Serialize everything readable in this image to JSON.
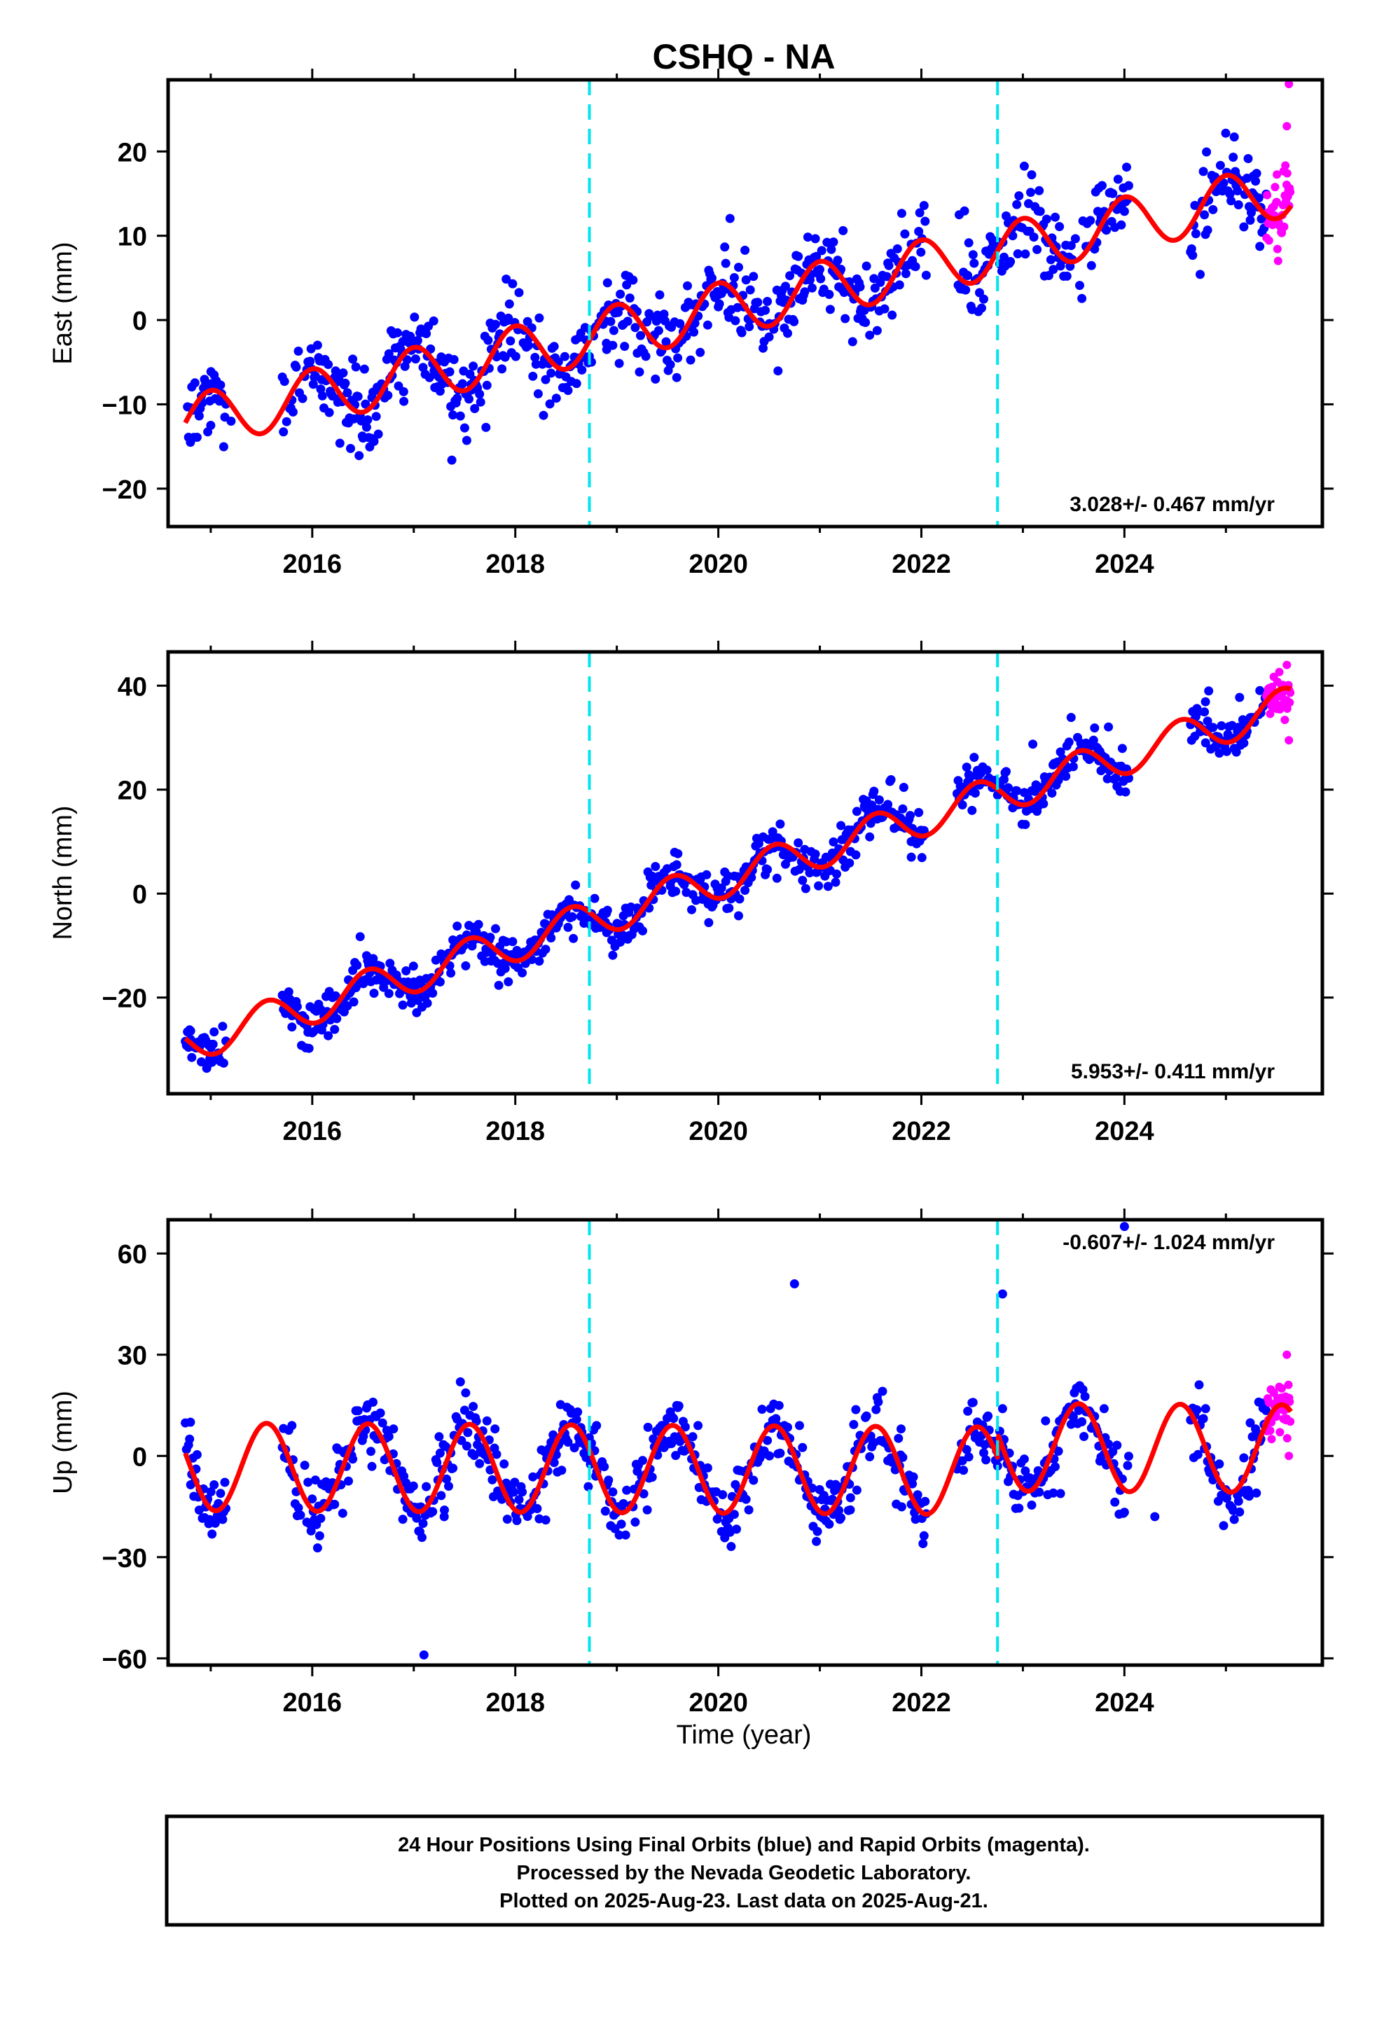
{
  "chart_title": "CSHQ - NA",
  "x_axis_label": "Time (year)",
  "footer": {
    "line1": "24 Hour Positions Using Final Orbits (blue) and Rapid Orbits (magenta).",
    "line2": "Processed by the Nevada Geodetic Laboratory.",
    "line3": "Plotted on 2025-Aug-23. Last data on 2025-Aug-21."
  },
  "colors": {
    "final_orbits": "#0000ff",
    "rapid_orbits": "#ff00ff",
    "model_fit": "#ff0000",
    "equipment_change": "#00e5ee",
    "frame": "#000000"
  },
  "chart_data": [
    {
      "type": "scatter",
      "panel": "east",
      "ylabel": "East (mm)",
      "xlim": [
        2014.58,
        2025.95
      ],
      "ylim": [
        -24.5,
        28.5
      ],
      "x_ticks": [
        2016,
        2018,
        2020,
        2022,
        2024
      ],
      "y_ticks": [
        -20,
        -10,
        0,
        10,
        20
      ],
      "rate_annotation": "3.028+/- 0.467 mm/yr",
      "rate_position": "bottom-right",
      "equipment_changes": [
        2018.73,
        2022.75
      ],
      "data_span": [
        2014.75,
        2025.4
      ],
      "rapid_span": [
        2025.4,
        2025.64
      ],
      "offsets": [],
      "series": [
        {
          "name": "Final Orbits (blue)",
          "color": "#0000ff",
          "sampled_values": [
            [
              2014.8,
              -14.5
            ],
            [
              2015.0,
              -12.5
            ],
            [
              2015.2,
              -12.0
            ],
            [
              2015.8,
              -9.5
            ],
            [
              2016.1,
              -9.0
            ],
            [
              2016.5,
              -14.0
            ],
            [
              2016.9,
              -8.5
            ],
            [
              2017.2,
              -6.0
            ],
            [
              2017.6,
              -10.5
            ],
            [
              2018.1,
              -3.0
            ],
            [
              2018.5,
              -8.0
            ],
            [
              2018.9,
              -3.5
            ],
            [
              2019.2,
              1.0
            ],
            [
              2019.6,
              -4.5
            ],
            [
              2020.0,
              3.0
            ],
            [
              2020.5,
              -2.0
            ],
            [
              2021.0,
              6.0
            ],
            [
              2021.4,
              1.0
            ],
            [
              2021.9,
              9.0
            ],
            [
              2022.4,
              4.5
            ],
            [
              2022.9,
              10.0
            ],
            [
              2023.3,
              6.0
            ],
            [
              2023.8,
              11.5
            ],
            [
              2024.8,
              14.0
            ],
            [
              2025.1,
              16.0
            ],
            [
              2025.35,
              12.0
            ]
          ]
        },
        {
          "name": "Rapid Orbits (magenta)",
          "color": "#ff00ff",
          "sampled_values": [
            [
              2025.45,
              12.0
            ],
            [
              2025.5,
              14.0
            ],
            [
              2025.55,
              10.5
            ],
            [
              2025.6,
              23.0
            ],
            [
              2025.62,
              28.0
            ]
          ]
        },
        {
          "name": "Model fit",
          "color": "#ff0000",
          "model": {
            "t0": 2020.0,
            "intercept": 1.2,
            "rate": 2.55,
            "seasonal_amplitude": 3.2,
            "seasonal_phase_year": 2015.0
          }
        }
      ]
    },
    {
      "type": "scatter",
      "panel": "north",
      "ylabel": "North (mm)",
      "xlim": [
        2014.58,
        2025.95
      ],
      "ylim": [
        -38.5,
        46.5
      ],
      "x_ticks": [
        2016,
        2018,
        2020,
        2022,
        2024
      ],
      "y_ticks": [
        -20,
        0,
        20,
        40
      ],
      "rate_annotation": "5.953+/- 0.411 mm/yr",
      "rate_position": "bottom-right",
      "equipment_changes": [
        2018.73,
        2022.75
      ],
      "data_span": [
        2014.75,
        2025.4
      ],
      "rapid_span": [
        2025.4,
        2025.64
      ],
      "offsets": [],
      "series": [
        {
          "name": "Final Orbits (blue)",
          "color": "#0000ff",
          "sampled_values": [
            [
              2014.8,
              -28.0
            ],
            [
              2015.0,
              -29.0
            ],
            [
              2015.8,
              -23.5
            ],
            [
              2016.2,
              -20.0
            ],
            [
              2016.6,
              -12.5
            ],
            [
              2017.0,
              -17.0
            ],
            [
              2017.6,
              -7.0
            ],
            [
              2017.9,
              -11.5
            ],
            [
              2018.5,
              -2.0
            ],
            [
              2018.9,
              -7.5
            ],
            [
              2019.6,
              3.0
            ],
            [
              2019.9,
              -2.0
            ],
            [
              2020.5,
              8.5
            ],
            [
              2020.9,
              4.0
            ],
            [
              2021.5,
              14.0
            ],
            [
              2021.9,
              10.0
            ],
            [
              2022.5,
              20.5
            ],
            [
              2022.9,
              16.5
            ],
            [
              2023.5,
              26.0
            ],
            [
              2023.9,
              22.0
            ],
            [
              2024.8,
              29.0
            ],
            [
              2025.2,
              32.0
            ]
          ]
        },
        {
          "name": "Rapid Orbits (magenta)",
          "color": "#ff00ff",
          "sampled_values": [
            [
              2025.45,
              36.0
            ],
            [
              2025.5,
              38.0
            ],
            [
              2025.55,
              40.0
            ],
            [
              2025.6,
              44.0
            ],
            [
              2025.62,
              29.5
            ]
          ]
        },
        {
          "name": "Model fit",
          "color": "#ff0000",
          "model": {
            "t0": 2020.0,
            "intercept": 2.5,
            "rate": 6.0,
            "seasonal_amplitude": 3.6,
            "seasonal_phase_year": 2015.55
          }
        }
      ]
    },
    {
      "type": "scatter",
      "panel": "up",
      "ylabel": "Up (mm)",
      "xlim": [
        2014.58,
        2025.95
      ],
      "ylim": [
        -62.0,
        70.0
      ],
      "x_ticks": [
        2016,
        2018,
        2020,
        2022,
        2024
      ],
      "y_ticks": [
        -60,
        -30,
        0,
        30,
        60
      ],
      "rate_annotation": "-0.607+/- 1.024 mm/yr",
      "rate_position": "top-right",
      "equipment_changes": [
        2018.73,
        2022.75
      ],
      "data_span": [
        2014.75,
        2025.4
      ],
      "rapid_span": [
        2025.4,
        2025.64
      ],
      "offsets": [
        {
          "time": 2022.75,
          "value": 7.0
        }
      ],
      "series": [
        {
          "name": "Final Orbits (blue)",
          "color": "#0000ff",
          "sampled_values": [
            [
              2014.8,
              10.0
            ],
            [
              2015.8,
              9.0
            ],
            [
              2016.3,
              -17.0
            ],
            [
              2016.8,
              8.0
            ],
            [
              2017.1,
              -59.0
            ],
            [
              2017.3,
              -18.0
            ],
            [
              2017.8,
              8.0
            ],
            [
              2018.3,
              -19.0
            ],
            [
              2018.8,
              9.0
            ],
            [
              2019.3,
              -16.0
            ],
            [
              2019.8,
              9.0
            ],
            [
              2020.3,
              -16.0
            ],
            [
              2020.75,
              51.0
            ],
            [
              2020.8,
              9.0
            ],
            [
              2021.3,
              -16.0
            ],
            [
              2021.8,
              8.0
            ],
            [
              2022.8,
              48.0
            ],
            [
              2022.8,
              14.0
            ],
            [
              2023.3,
              -11.0
            ],
            [
              2023.8,
              14.0
            ],
            [
              2024.0,
              68.0
            ],
            [
              2024.3,
              -18.0
            ],
            [
              2024.8,
              14.0
            ],
            [
              2025.3,
              -11.0
            ]
          ]
        },
        {
          "name": "Rapid Orbits (magenta)",
          "color": "#ff00ff",
          "sampled_values": [
            [
              2025.45,
              5.0
            ],
            [
              2025.5,
              14.0
            ],
            [
              2025.55,
              20.0
            ],
            [
              2025.6,
              30.0
            ],
            [
              2025.62,
              0.0
            ]
          ]
        },
        {
          "name": "Model fit",
          "color": "#ff0000",
          "model": {
            "t0": 2020.0,
            "intercept": -4.0,
            "rate": -0.15,
            "seasonal_amplitude": 13.0,
            "seasonal_phase_year": 2014.55
          }
        }
      ]
    }
  ]
}
